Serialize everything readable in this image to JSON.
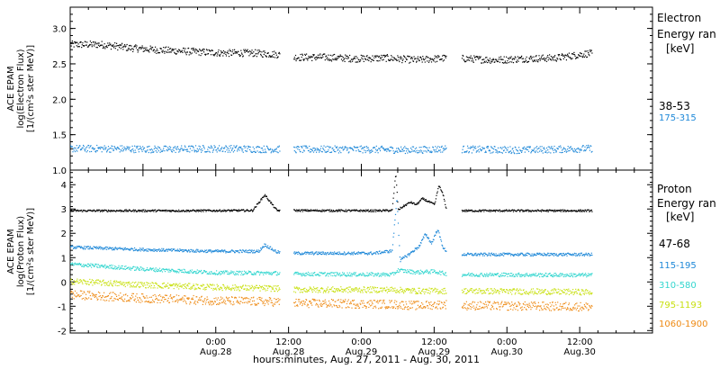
{
  "x_axis": {
    "title": "hours:minutes, Aug. 27, 2011 - Aug. 30, 2011",
    "range_hours": [
      0,
      96
    ],
    "ticks": [
      {
        "hours": 24,
        "time": "0:00",
        "date": "Aug.28"
      },
      {
        "hours": 36,
        "time": "12:00",
        "date": "Aug.28"
      },
      {
        "hours": 48,
        "time": "0:00",
        "date": "Aug.29"
      },
      {
        "hours": 60,
        "time": "12:00",
        "date": "Aug.29"
      },
      {
        "hours": 72,
        "time": "0:00",
        "date": "Aug.30"
      },
      {
        "hours": 84,
        "time": "12:00",
        "date": "Aug.30"
      }
    ]
  },
  "chart_data": [
    {
      "type": "scatter",
      "ylabel_lines": [
        "ACE EPAM",
        "log(Electron Flux)",
        "[1/(cm²s ster MeV)]"
      ],
      "ylim": [
        1.0,
        3.3
      ],
      "yticks": [
        {
          "v": 1.0,
          "label": "1.0"
        },
        {
          "v": 1.5,
          "label": "1.5"
        },
        {
          "v": 2.0,
          "label": "2.0"
        },
        {
          "v": 2.5,
          "label": "2.5"
        },
        {
          "v": 3.0,
          "label": "3.0"
        }
      ],
      "legend_title_lines": [
        "Electron",
        "Energy ran",
        "[keV]"
      ],
      "data_gaps_hours": [
        [
          34.5,
          36.8
        ],
        [
          62.0,
          64.5
        ]
      ],
      "series": [
        {
          "name": "38-53",
          "color": "#000000",
          "x_hours": [
            5,
            10,
            15,
            20,
            25,
            30,
            34,
            37,
            42,
            47,
            52,
            57,
            62,
            65,
            70,
            75,
            80,
            85
          ],
          "y": [
            2.78,
            2.73,
            2.7,
            2.68,
            2.66,
            2.66,
            2.64,
            2.6,
            2.6,
            2.58,
            2.59,
            2.56,
            2.59,
            2.58,
            2.56,
            2.58,
            2.59,
            2.65
          ],
          "spread": 0.05
        },
        {
          "name": "175-315",
          "color": "#1e88d8",
          "x_hours": [
            5,
            15,
            25,
            34,
            37,
            47,
            57,
            62,
            65,
            75,
            85
          ],
          "y": [
            1.31,
            1.3,
            1.31,
            1.3,
            1.3,
            1.3,
            1.29,
            1.31,
            1.3,
            1.29,
            1.31
          ],
          "spread": 0.05
        }
      ]
    },
    {
      "type": "scatter",
      "ylabel_lines": [
        "ACE EPAM",
        "log(Proton Flux)",
        "[1/(cm²s ster MeV)]"
      ],
      "ylim": [
        -2.1,
        4.6
      ],
      "yticks": [
        {
          "v": -2,
          "label": "-2"
        },
        {
          "v": -1,
          "label": "-1"
        },
        {
          "v": 0,
          "label": "0"
        },
        {
          "v": 1,
          "label": "1"
        },
        {
          "v": 2,
          "label": "2"
        },
        {
          "v": 3,
          "label": "3"
        },
        {
          "v": 4,
          "label": "4"
        }
      ],
      "legend_title_lines": [
        "Proton",
        "Energy ran",
        "[keV]"
      ],
      "data_gaps_hours": [
        [
          34.5,
          36.8
        ],
        [
          62.0,
          64.5
        ]
      ],
      "series": [
        {
          "name": "47-68",
          "color": "#000000",
          "x_hours": [
            0,
            20,
            30,
            32,
            34,
            37,
            50,
            53,
            53.6,
            54,
            56,
            57,
            58,
            60,
            60.7,
            61.4,
            62,
            65,
            86
          ],
          "y": [
            2.95,
            2.95,
            2.96,
            3.6,
            2.96,
            2.96,
            2.95,
            2.96,
            4.5,
            3.0,
            3.3,
            3.2,
            3.45,
            3.2,
            4.0,
            3.6,
            2.95,
            2.95,
            2.95
          ],
          "spread": 0.04
        },
        {
          "name": "115-195",
          "color": "#1e88d8",
          "x_hours": [
            0,
            12,
            24,
            31,
            32,
            34,
            37,
            50,
            53,
            53.8,
            54.3,
            56,
            57.5,
            58.5,
            59.5,
            60.5,
            61.3,
            62,
            65,
            86
          ],
          "y": [
            1.45,
            1.35,
            1.28,
            1.28,
            1.55,
            1.25,
            1.2,
            1.2,
            1.3,
            3.5,
            0.9,
            1.2,
            1.5,
            2.0,
            1.6,
            2.2,
            1.5,
            1.2,
            1.15,
            1.15
          ],
          "spread": 0.06
        },
        {
          "name": "310-580",
          "color": "#33d6cf",
          "x_hours": [
            0,
            12,
            24,
            34,
            37,
            53,
            54,
            57,
            60,
            62,
            65,
            86
          ],
          "y": [
            0.75,
            0.55,
            0.4,
            0.38,
            0.35,
            0.32,
            0.5,
            0.42,
            0.45,
            0.35,
            0.32,
            0.3
          ],
          "spread": 0.08
        },
        {
          "name": "795-1193",
          "color": "#c8e010",
          "x_hours": [
            0,
            12,
            24,
            34,
            37,
            53,
            57,
            62,
            65,
            86
          ],
          "y": [
            0.05,
            -0.1,
            -0.2,
            -0.25,
            -0.3,
            -0.3,
            -0.35,
            -0.35,
            -0.35,
            -0.4
          ],
          "spread": 0.12
        },
        {
          "name": "1060-1900",
          "color": "#ee8a14",
          "x_hours": [
            0,
            12,
            24,
            34,
            37,
            53,
            57,
            62,
            65,
            86
          ],
          "y": [
            -0.5,
            -0.65,
            -0.75,
            -0.8,
            -0.85,
            -0.9,
            -0.95,
            -0.9,
            -0.95,
            -1.0
          ],
          "spread": 0.18
        }
      ]
    }
  ]
}
